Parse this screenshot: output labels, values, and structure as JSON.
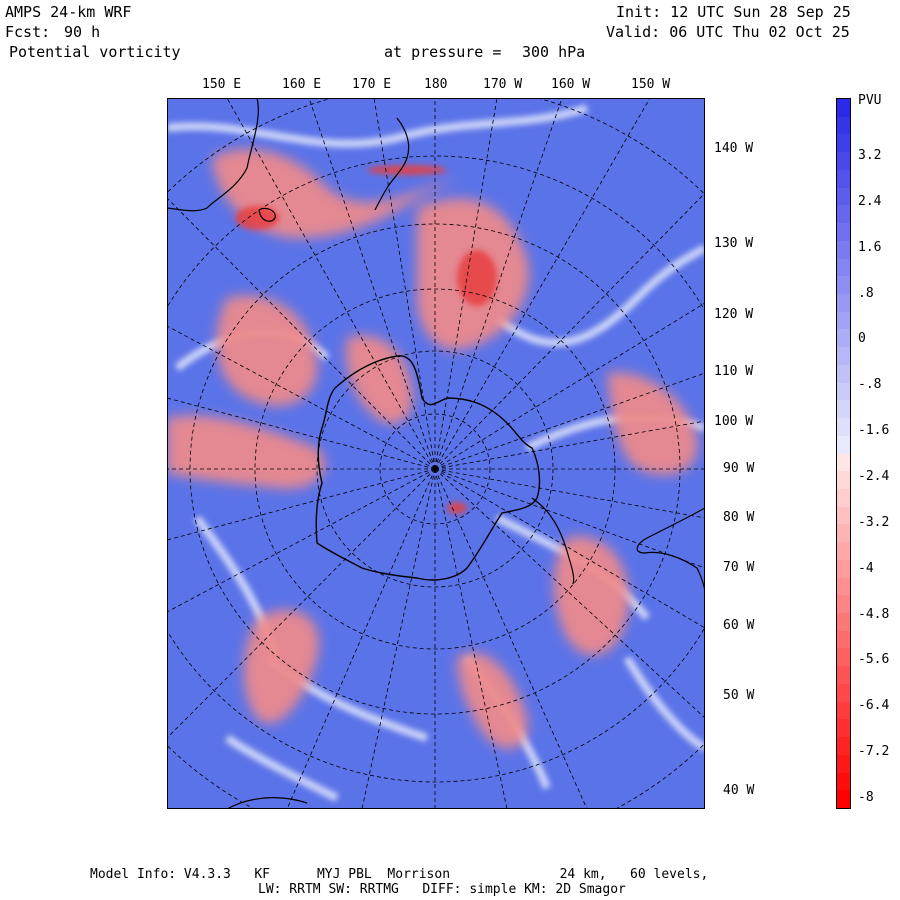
{
  "header": {
    "model": "AMPS 24-km WRF",
    "forecast_label": "Fcst:",
    "forecast_value": "90 h",
    "field": "Potential vorticity",
    "pressure_label": "at pressure =",
    "pressure_value": "300 hPa",
    "init": "Init: 12 UTC Sun 28 Sep 25",
    "valid": "Valid: 06 UTC Thu 02 Oct 25"
  },
  "map": {
    "projection": "south-polar-stereographic",
    "center_longitude": "180",
    "top_longitude_labels": [
      "150 E",
      "160 E",
      "170 E",
      "180",
      "170 W",
      "160 W",
      "150 W"
    ],
    "right_longitude_labels": [
      "140 W",
      "130 W",
      "120 W",
      "110 W",
      "100 W",
      "90 W",
      "80 W",
      "70 W",
      "60 W",
      "50 W",
      "40 W"
    ],
    "field_colors": {
      "positive_pv": "#f08080",
      "negative_pv": "#5b73e8",
      "neutral": "#ffffff"
    }
  },
  "colorbar": {
    "unit": "PVU",
    "labels": [
      "3.2",
      "2.4",
      "1.6",
      ".8",
      "0",
      "-.8",
      "-1.6",
      "-2.4",
      "-3.2",
      "-4",
      "-4.8",
      "-5.6",
      "-6.4",
      "-7.2",
      "-8"
    ],
    "top_color": "#2a2ae8",
    "bottom_color": "#ff0000"
  },
  "footer": {
    "line1": "Model Info: V4.3.3   KF      MYJ PBL  Morrison              24 km,   60 levels,",
    "line2": "LW: RRTM SW: RRTMG   DIFF: simple KM: 2D Smagor"
  }
}
